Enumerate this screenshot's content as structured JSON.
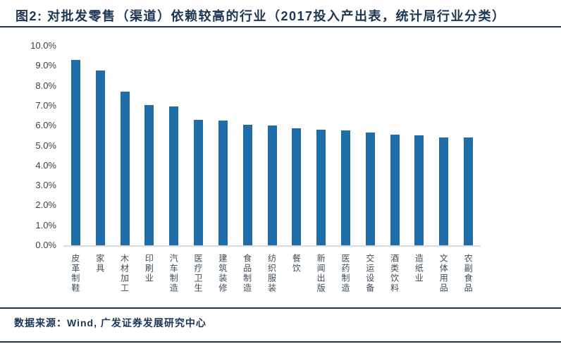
{
  "title": "图2: 对批发零售（渠道）依赖较高的行业（2017投入产出表，统计局行业分类）",
  "source": "数据来源：Wind, 广发证券发展研究中心",
  "colors": {
    "bar": "#1F6DA9",
    "accent_navy": "#1C3553",
    "baseline": "#D9D9D9",
    "y_tick_text": "#404040",
    "x_tick_text": "#3E4C59"
  },
  "chart_data": {
    "type": "bar",
    "title": "对批发零售（渠道）依赖较高的行业（2017投入产出表，统计局行业分类）",
    "categories": [
      "皮革制鞋",
      "家具",
      "木材加工",
      "印刷业",
      "汽车制造",
      "医疗卫生",
      "建筑装修",
      "食品制造",
      "纺织服装",
      "餐饮",
      "新闻出版",
      "医药制造",
      "交运设备",
      "酒类饮料",
      "造纸业",
      "文体用品",
      "农副食品"
    ],
    "values": [
      9.3,
      8.75,
      7.7,
      7.05,
      6.95,
      6.3,
      6.25,
      6.05,
      6.0,
      5.85,
      5.8,
      5.75,
      5.65,
      5.55,
      5.5,
      5.4,
      5.4
    ],
    "unit": "%",
    "xlabel": "",
    "ylabel": "",
    "ylim": [
      0,
      10
    ],
    "ytick_step": 1,
    "yticks": [
      "10.0%",
      "9.0%",
      "8.0%",
      "7.0%",
      "6.0%",
      "5.0%",
      "4.0%",
      "3.0%",
      "2.0%",
      "1.0%",
      "0.0%"
    ],
    "grid": false,
    "legend_position": "none"
  }
}
